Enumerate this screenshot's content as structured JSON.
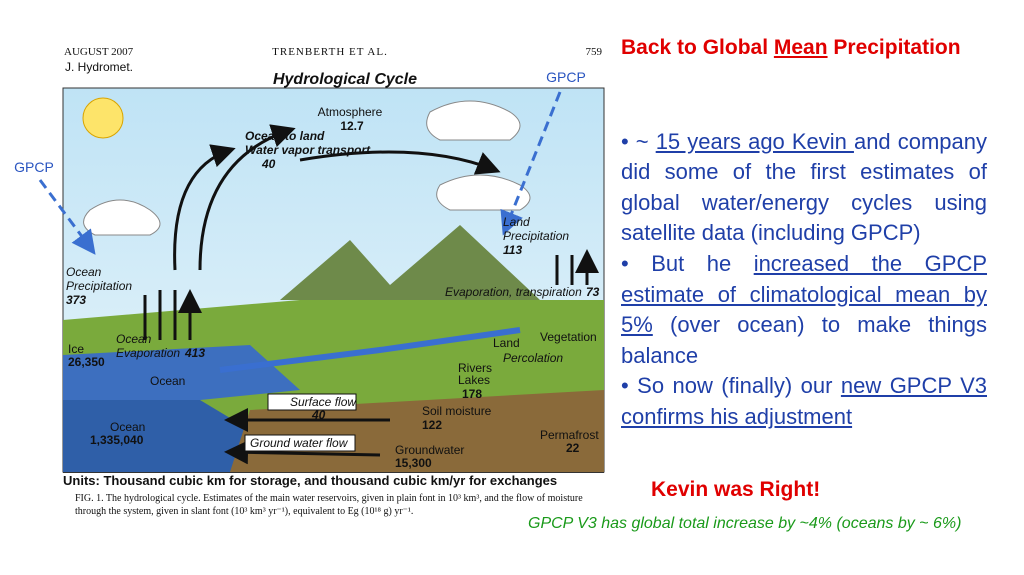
{
  "paper": {
    "date": "AUGUST 2007",
    "authors": "TRENBERTH ET AL.",
    "page": "759",
    "journal": "J. Hydromet."
  },
  "figure": {
    "title": "Hydrological Cycle",
    "gpcp_labels": [
      "GPCP",
      "GPCP"
    ],
    "labels": [
      {
        "text": "Atmosphere",
        "style": "plain"
      },
      {
        "text": "12.7",
        "style": "bold"
      },
      {
        "text": "Ocean to land",
        "style": "bold-italic"
      },
      {
        "text": "Water vapor transport",
        "style": "bold-italic"
      },
      {
        "text": "40",
        "style": "bold-italic"
      },
      {
        "text": "Land",
        "style": "italic"
      },
      {
        "text": "Precipitation",
        "style": "italic"
      },
      {
        "text": "113",
        "style": "bold-italic"
      },
      {
        "text": "Ocean",
        "style": "italic"
      },
      {
        "text": "Precipitation",
        "style": "italic"
      },
      {
        "text": "373",
        "style": "bold-italic"
      },
      {
        "text": "Evaporation, transpiration",
        "style": "italic"
      },
      {
        "text": "73",
        "style": "bold-italic"
      },
      {
        "text": "Ocean",
        "style": "italic"
      },
      {
        "text": "Evaporation",
        "style": "italic"
      },
      {
        "text": "413",
        "style": "bold-italic"
      },
      {
        "text": "Ice",
        "style": "plain"
      },
      {
        "text": "26,350",
        "style": "bold"
      },
      {
        "text": "Ocean",
        "style": "plain"
      },
      {
        "text": "Vegetation",
        "style": "plain"
      },
      {
        "text": "Land",
        "style": "plain"
      },
      {
        "text": "Percolation",
        "style": "italic"
      },
      {
        "text": "Rivers",
        "style": "plain"
      },
      {
        "text": "Lakes",
        "style": "plain"
      },
      {
        "text": "178",
        "style": "bold"
      },
      {
        "text": "Surface flow",
        "style": "italic"
      },
      {
        "text": "40",
        "style": "bold-italic"
      },
      {
        "text": "Soil moisture",
        "style": "plain"
      },
      {
        "text": "122",
        "style": "bold"
      },
      {
        "text": "Ocean",
        "style": "plain"
      },
      {
        "text": "1,335,040",
        "style": "bold"
      },
      {
        "text": "Ground water flow",
        "style": "italic"
      },
      {
        "text": "Groundwater",
        "style": "plain"
      },
      {
        "text": "15,300",
        "style": "bold"
      },
      {
        "text": "Permafrost",
        "style": "plain"
      },
      {
        "text": "22",
        "style": "bold"
      }
    ],
    "units": "Units: Thousand cubic km for storage, and thousand cubic km/yr for exchanges",
    "caption": [
      "FIG. 1. The hydrological cycle. Estimates of the main water reservoirs, given in plain font in 10³ km³, and the flow of moisture",
      "through the system, given in slant font (10³ km³ yr⁻¹), equivalent to Eg (10¹⁸ g) yr⁻¹."
    ]
  },
  "slide": {
    "title": [
      {
        "text": "Back to Global "
      },
      {
        "text": "Mean",
        "underline": true
      },
      {
        "text": " Precipitation"
      }
    ],
    "bullets": [
      [
        {
          "text": "• ~ "
        },
        {
          "text": "15 years ago Kevin ",
          "underline": true
        },
        {
          "text": "and company did some of the first estimates of global water/energy cycles using satellite data (including GPCP)"
        }
      ],
      [
        {
          "text": "• But he "
        },
        {
          "text": "increased the GPCP estimate of climatological mean by 5%",
          "underline": true
        },
        {
          "text": " (over ocean) to make things balance"
        }
      ],
      [
        {
          "text": "• So now (finally) our "
        },
        {
          "text": "new GPCP V3 confirms his adjustment",
          "underline": true
        }
      ]
    ],
    "conclusion": "Kevin was Right!",
    "note": "GPCP V3 has global total increase by ~4% (oceans by ~ 6%)"
  }
}
